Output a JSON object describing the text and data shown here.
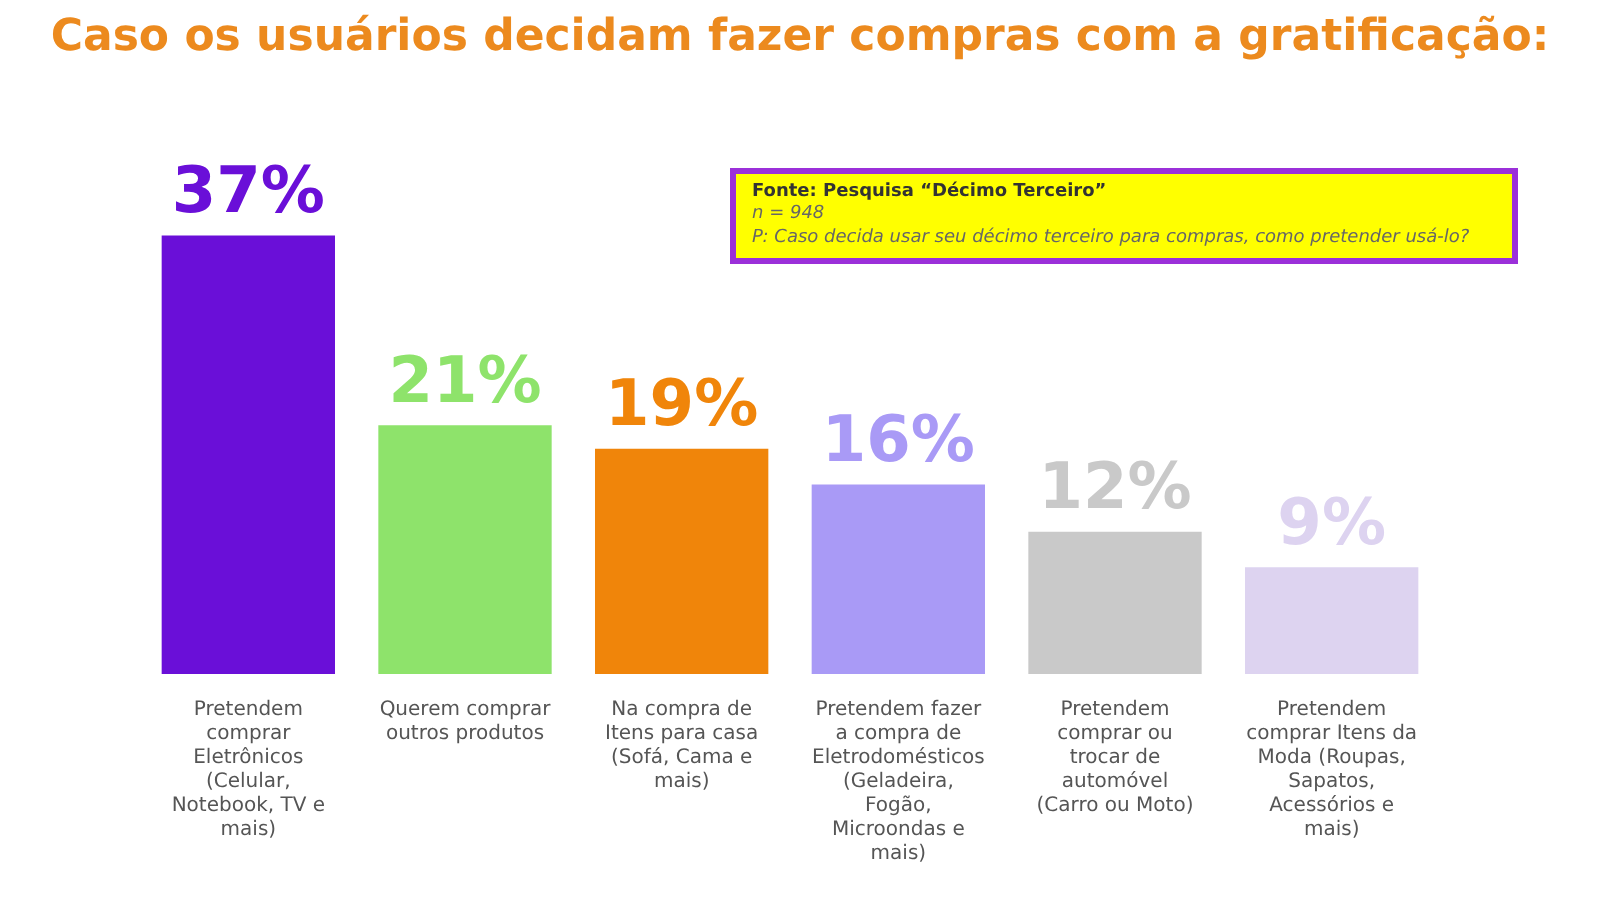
{
  "chart_data": {
    "type": "bar",
    "title": "Caso os usuários decidam fazer compras com a gratificação:",
    "categories": [
      "Pretendem comprar Eletrônicos (Celular, Notebook, TV e mais)",
      "Querem comprar outros produtos",
      "Na compra de Itens para casa (Sofá, Cama e mais)",
      "Pretendem fazer a compra de Eletrodomésticos (Geladeira, Fogão, Microondas e mais)",
      "Pretendem comprar ou trocar de automóvel (Carro ou Moto)",
      "Pretendem comprar Itens da Moda (Roupas, Sapatos, Acessórios e mais)"
    ],
    "values": [
      37,
      21,
      19,
      16,
      12,
      9
    ],
    "colors": [
      "#6a0fd8",
      "#8ee36b",
      "#f0850a",
      "#a99af6",
      "#c9c9c9",
      "#ddd3f0"
    ],
    "value_labels": [
      "37%",
      "21%",
      "19%",
      "16%",
      "12%",
      "9%"
    ],
    "annotations": [
      "Fonte: Pesquisa “Décimo Terceiro”",
      "n = 948",
      "P:  Caso decida usar seu décimo terceiro para compras, como pretender usá-lo?"
    ],
    "grid": false,
    "legend": false
  }
}
